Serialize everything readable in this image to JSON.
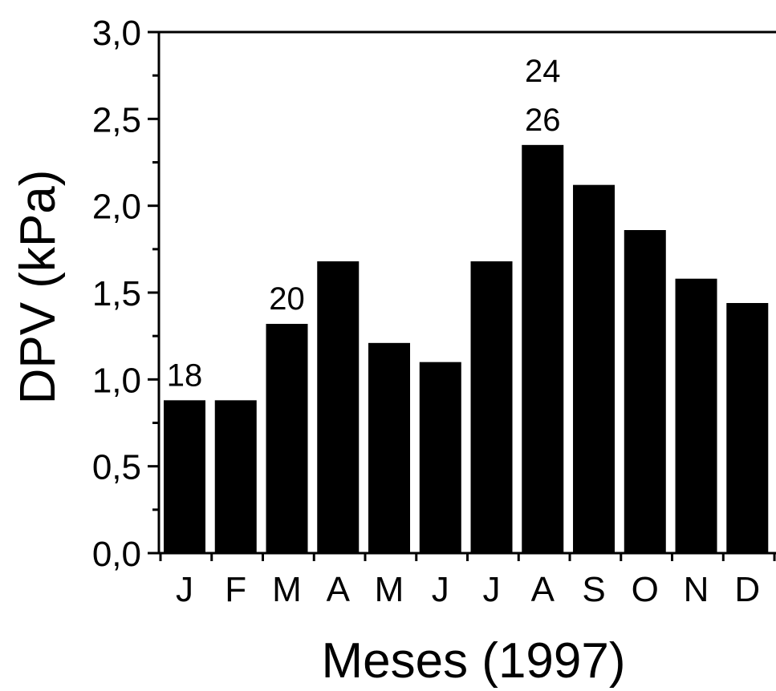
{
  "chart_data": {
    "type": "bar",
    "categories": [
      "J",
      "F",
      "M",
      "A",
      "M",
      "J",
      "J",
      "A",
      "S",
      "O",
      "N",
      "D"
    ],
    "values": [
      0.88,
      0.88,
      1.32,
      1.68,
      1.21,
      1.1,
      1.68,
      2.35,
      2.12,
      1.86,
      1.58,
      1.44
    ],
    "xlabel": "Meses (1997)",
    "ylabel": "DPV (kPa)",
    "ylim": [
      0,
      3.0
    ],
    "yticks": [
      {
        "value": 0.0,
        "label": "0,0"
      },
      {
        "value": 0.5,
        "label": "0,5"
      },
      {
        "value": 1.0,
        "label": "1,0"
      },
      {
        "value": 1.5,
        "label": "1,5"
      },
      {
        "value": 2.0,
        "label": "2,0"
      },
      {
        "value": 2.5,
        "label": "2,5"
      },
      {
        "value": 3.0,
        "label": "3,0"
      }
    ],
    "annotations": [
      {
        "category_index": 0,
        "lines": [
          "18"
        ]
      },
      {
        "category_index": 2,
        "lines": [
          "20"
        ]
      },
      {
        "category_index": 7,
        "lines": [
          "24",
          "26"
        ]
      }
    ],
    "bar_color": "#000000",
    "grid": false
  }
}
